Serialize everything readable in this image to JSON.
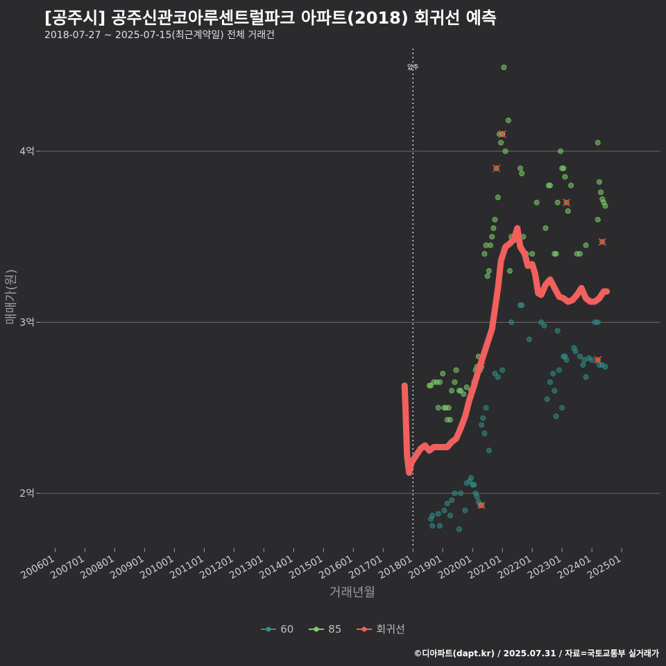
{
  "header": {
    "title": "[공주시] 공주신관코아루센트럴파크 아파트(2018) 회귀선 예측",
    "subtitle": "2018-07-27 ~ 2025-07-15(최근계약일) 전체 거래건"
  },
  "footer": {
    "credit": "©디아파트(dapt.kr) / 2025.07.31 / 자료=국토교통부 실거래가"
  },
  "chart_data": {
    "type": "scatter",
    "title": "[공주시] 공주신관코아루센트럴파크 아파트(2018) 회귀선 예측",
    "xlabel": "거래년월",
    "ylabel": "매매가(원)",
    "x_unit": "year",
    "xlim": [
      2005.5,
      2026.3
    ],
    "ylim": [
      1.68,
      4.6
    ],
    "x_ticks": [
      {
        "label": "200601",
        "value": 2006.0
      },
      {
        "label": "200701",
        "value": 2007.0
      },
      {
        "label": "200801",
        "value": 2008.0
      },
      {
        "label": "200901",
        "value": 2009.0
      },
      {
        "label": "201001",
        "value": 2010.0
      },
      {
        "label": "201101",
        "value": 2011.0
      },
      {
        "label": "201201",
        "value": 2012.0
      },
      {
        "label": "201301",
        "value": 2013.0
      },
      {
        "label": "201401",
        "value": 2014.0
      },
      {
        "label": "201501",
        "value": 2015.0
      },
      {
        "label": "201601",
        "value": 2016.0
      },
      {
        "label": "201701",
        "value": 2017.0
      },
      {
        "label": "201801",
        "value": 2018.0
      },
      {
        "label": "201901",
        "value": 2019.0
      },
      {
        "label": "202001",
        "value": 2020.0
      },
      {
        "label": "202101",
        "value": 2021.0
      },
      {
        "label": "202201",
        "value": 2022.0
      },
      {
        "label": "202301",
        "value": 2023.0
      },
      {
        "label": "202401",
        "value": 2024.0
      },
      {
        "label": "202501",
        "value": 2025.0
      }
    ],
    "y_ticks": [
      {
        "label": "2억",
        "value": 2
      },
      {
        "label": "3억",
        "value": 3
      },
      {
        "label": "4억",
        "value": 4
      }
    ],
    "annotation": {
      "label": "입주",
      "x": 2018.0
    },
    "legend": [
      {
        "name": "60",
        "color": "#2f8f8a"
      },
      {
        "name": "85",
        "color": "#7ccf6a"
      },
      {
        "name": "회귀선",
        "color": "#f0605d"
      }
    ],
    "series": [
      {
        "name": "60",
        "color": "#2f8f8a",
        "points": [
          [
            2018.6,
            1.85
          ],
          [
            2018.65,
            1.87
          ],
          [
            2018.65,
            1.81
          ],
          [
            2018.85,
            1.88
          ],
          [
            2018.9,
            1.81
          ],
          [
            2019.05,
            1.9
          ],
          [
            2019.15,
            1.94
          ],
          [
            2019.25,
            1.87
          ],
          [
            2019.3,
            1.96
          ],
          [
            2019.4,
            2.0
          ],
          [
            2019.55,
            1.79
          ],
          [
            2019.6,
            2.0
          ],
          [
            2019.75,
            1.9
          ],
          [
            2019.8,
            2.06
          ],
          [
            2019.9,
            2.07
          ],
          [
            2019.95,
            2.09
          ],
          [
            2020.0,
            2.05
          ],
          [
            2020.05,
            2.05
          ],
          [
            2020.1,
            2.0
          ],
          [
            2020.15,
            1.98
          ],
          [
            2020.2,
            1.95
          ],
          [
            2020.25,
            1.93
          ],
          [
            2020.3,
            2.4
          ],
          [
            2020.35,
            2.44
          ],
          [
            2020.4,
            2.35
          ],
          [
            2020.45,
            2.5
          ],
          [
            2020.55,
            2.25
          ],
          [
            2020.75,
            2.7
          ],
          [
            2020.85,
            2.68
          ],
          [
            2021.0,
            2.72
          ],
          [
            2021.3,
            3.0
          ],
          [
            2021.6,
            3.1
          ],
          [
            2021.65,
            3.1
          ],
          [
            2021.9,
            2.9
          ],
          [
            2022.3,
            3.0
          ],
          [
            2022.4,
            2.98
          ],
          [
            2022.5,
            2.55
          ],
          [
            2022.6,
            2.65
          ],
          [
            2022.7,
            2.7
          ],
          [
            2022.75,
            2.6
          ],
          [
            2022.8,
            2.45
          ],
          [
            2022.85,
            2.95
          ],
          [
            2022.9,
            2.72
          ],
          [
            2023.0,
            2.5
          ],
          [
            2023.05,
            2.8
          ],
          [
            2023.1,
            2.8
          ],
          [
            2023.15,
            2.78
          ],
          [
            2023.4,
            2.85
          ],
          [
            2023.45,
            2.83
          ],
          [
            2023.6,
            2.8
          ],
          [
            2023.7,
            2.75
          ],
          [
            2023.75,
            2.78
          ],
          [
            2023.8,
            2.68
          ],
          [
            2023.9,
            2.79
          ],
          [
            2024.0,
            2.78
          ],
          [
            2024.1,
            3.0
          ],
          [
            2024.2,
            3.0
          ],
          [
            2024.25,
            2.75
          ],
          [
            2024.35,
            2.75
          ],
          [
            2024.45,
            2.74
          ]
        ]
      },
      {
        "name": "85",
        "color": "#7ccf6a",
        "points": [
          [
            2018.55,
            2.63
          ],
          [
            2018.6,
            2.63
          ],
          [
            2018.7,
            2.65
          ],
          [
            2018.8,
            2.65
          ],
          [
            2018.85,
            2.5
          ],
          [
            2018.9,
            2.65
          ],
          [
            2019.0,
            2.7
          ],
          [
            2019.05,
            2.5
          ],
          [
            2019.1,
            2.5
          ],
          [
            2019.15,
            2.43
          ],
          [
            2019.2,
            2.5
          ],
          [
            2019.25,
            2.43
          ],
          [
            2019.3,
            2.6
          ],
          [
            2019.4,
            2.65
          ],
          [
            2019.45,
            2.72
          ],
          [
            2019.55,
            2.6
          ],
          [
            2019.6,
            2.6
          ],
          [
            2019.7,
            2.58
          ],
          [
            2019.8,
            2.62
          ],
          [
            2019.85,
            2.52
          ],
          [
            2019.9,
            2.55
          ],
          [
            2019.95,
            2.6
          ],
          [
            2020.0,
            2.6
          ],
          [
            2020.05,
            2.65
          ],
          [
            2020.1,
            2.72
          ],
          [
            2020.15,
            2.74
          ],
          [
            2020.2,
            2.8
          ],
          [
            2020.25,
            2.72
          ],
          [
            2020.3,
            2.74
          ],
          [
            2020.35,
            2.8
          ],
          [
            2020.4,
            3.4
          ],
          [
            2020.45,
            3.45
          ],
          [
            2020.5,
            3.27
          ],
          [
            2020.55,
            3.3
          ],
          [
            2020.6,
            3.45
          ],
          [
            2020.65,
            3.5
          ],
          [
            2020.7,
            3.55
          ],
          [
            2020.75,
            3.6
          ],
          [
            2020.85,
            3.73
          ],
          [
            2020.9,
            4.1
          ],
          [
            2020.95,
            4.05
          ],
          [
            2021.0,
            4.1
          ],
          [
            2021.05,
            4.49
          ],
          [
            2021.1,
            4.0
          ],
          [
            2021.2,
            4.18
          ],
          [
            2021.25,
            3.3
          ],
          [
            2021.3,
            3.5
          ],
          [
            2021.4,
            3.48
          ],
          [
            2021.6,
            3.9
          ],
          [
            2021.65,
            3.87
          ],
          [
            2021.7,
            3.5
          ],
          [
            2021.8,
            3.4
          ],
          [
            2022.0,
            3.4
          ],
          [
            2022.15,
            3.7
          ],
          [
            2022.45,
            3.55
          ],
          [
            2022.55,
            3.8
          ],
          [
            2022.6,
            3.8
          ],
          [
            2022.75,
            3.4
          ],
          [
            2022.8,
            3.4
          ],
          [
            2022.85,
            3.7
          ],
          [
            2022.95,
            4.0
          ],
          [
            2023.0,
            3.9
          ],
          [
            2023.05,
            3.9
          ],
          [
            2023.1,
            3.85
          ],
          [
            2023.2,
            3.65
          ],
          [
            2023.3,
            3.8
          ],
          [
            2023.5,
            3.4
          ],
          [
            2023.6,
            3.4
          ],
          [
            2023.8,
            3.45
          ],
          [
            2024.2,
            4.05
          ],
          [
            2024.25,
            3.82
          ],
          [
            2024.3,
            3.76
          ],
          [
            2024.35,
            3.72
          ],
          [
            2024.4,
            3.7
          ],
          [
            2024.45,
            3.68
          ],
          [
            2024.2,
            3.6
          ]
        ]
      }
    ],
    "excluded_marks": [
      [
        2020.3,
        2.78
      ],
      [
        2021.0,
        4.1
      ],
      [
        2020.8,
        3.9
      ],
      [
        2020.3,
        1.93
      ],
      [
        2023.15,
        3.7
      ],
      [
        2024.2,
        2.78
      ],
      [
        2024.35,
        3.47
      ]
    ],
    "regression": {
      "name": "회귀선",
      "color": "#f0605d",
      "points": [
        [
          2017.72,
          2.63
        ],
        [
          2017.75,
          2.5
        ],
        [
          2017.8,
          2.22
        ],
        [
          2017.87,
          2.12
        ],
        [
          2017.95,
          2.18
        ],
        [
          2018.1,
          2.22
        ],
        [
          2018.25,
          2.26
        ],
        [
          2018.4,
          2.28
        ],
        [
          2018.55,
          2.25
        ],
        [
          2018.7,
          2.27
        ],
        [
          2018.85,
          2.27
        ],
        [
          2019.0,
          2.27
        ],
        [
          2019.15,
          2.27
        ],
        [
          2019.3,
          2.3
        ],
        [
          2019.45,
          2.32
        ],
        [
          2019.6,
          2.38
        ],
        [
          2019.75,
          2.45
        ],
        [
          2019.9,
          2.55
        ],
        [
          2020.05,
          2.63
        ],
        [
          2020.2,
          2.72
        ],
        [
          2020.35,
          2.8
        ],
        [
          2020.5,
          2.88
        ],
        [
          2020.65,
          2.96
        ],
        [
          2020.75,
          3.08
        ],
        [
          2020.85,
          3.2
        ],
        [
          2020.95,
          3.36
        ],
        [
          2021.1,
          3.44
        ],
        [
          2021.25,
          3.46
        ],
        [
          2021.4,
          3.49
        ],
        [
          2021.5,
          3.55
        ],
        [
          2021.6,
          3.44
        ],
        [
          2021.75,
          3.4
        ],
        [
          2021.85,
          3.33
        ],
        [
          2022.0,
          3.34
        ],
        [
          2022.1,
          3.28
        ],
        [
          2022.2,
          3.17
        ],
        [
          2022.3,
          3.16
        ],
        [
          2022.45,
          3.22
        ],
        [
          2022.6,
          3.25
        ],
        [
          2022.75,
          3.2
        ],
        [
          2022.9,
          3.15
        ],
        [
          2023.05,
          3.14
        ],
        [
          2023.2,
          3.12
        ],
        [
          2023.35,
          3.13
        ],
        [
          2023.5,
          3.16
        ],
        [
          2023.65,
          3.2
        ],
        [
          2023.8,
          3.14
        ],
        [
          2023.95,
          3.12
        ],
        [
          2024.1,
          3.12
        ],
        [
          2024.25,
          3.14
        ],
        [
          2024.4,
          3.18
        ],
        [
          2024.5,
          3.18
        ]
      ]
    }
  }
}
